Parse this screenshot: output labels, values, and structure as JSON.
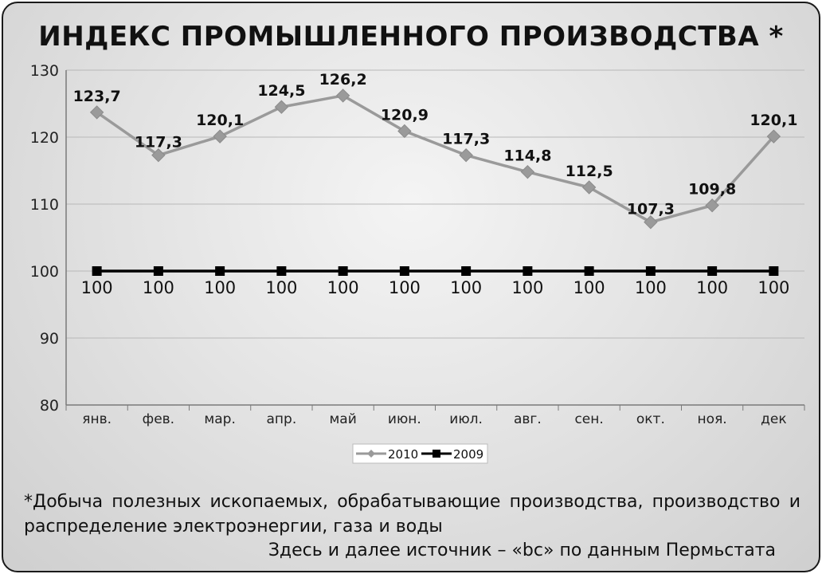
{
  "title": "ИНДЕКС ПРОМЫШЛЕННОГО ПРОИЗВОДСТВА *",
  "footnote": "*Добыча полезных ископаемых, обрабатывающие производства, производство и распределение электроэнергии, газа и воды",
  "source": "Здесь и далее источник – «bc» по данным Пермьстата",
  "colors": {
    "series_2010": "#9a9a9a",
    "series_2009": "#000000",
    "grid": "#b8b8b8",
    "axis": "#7a7a7a"
  },
  "chart_data": {
    "type": "line",
    "title": "ИНДЕКС ПРОМЫШЛЕННОГО ПРОИЗВОДСТВА *",
    "categories": [
      "янв.",
      "фев.",
      "мар.",
      "апр.",
      "май",
      "июн.",
      "июл.",
      "авг.",
      "сен.",
      "окт.",
      "ноя.",
      "дек"
    ],
    "series": [
      {
        "name": "2010",
        "values": [
          123.7,
          117.3,
          120.1,
          124.5,
          126.2,
          120.9,
          117.3,
          114.8,
          112.5,
          107.3,
          109.8,
          120.1
        ],
        "labels": [
          "123,7",
          "117,3",
          "120,1",
          "124,5",
          "126,2",
          "120,9",
          "117,3",
          "114,8",
          "112,5",
          "107,3",
          "109,8",
          "120,1"
        ],
        "marker": "diamond"
      },
      {
        "name": "2009",
        "values": [
          100,
          100,
          100,
          100,
          100,
          100,
          100,
          100,
          100,
          100,
          100,
          100
        ],
        "labels": [
          "100",
          "100",
          "100",
          "100",
          "100",
          "100",
          "100",
          "100",
          "100",
          "100",
          "100",
          "100"
        ],
        "marker": "square"
      }
    ],
    "ylim": [
      80,
      130
    ],
    "yticks": [
      "80",
      "90",
      "100",
      "110",
      "120",
      "130"
    ],
    "xlabel": "",
    "ylabel": "",
    "grid": true,
    "legend": "bottom"
  }
}
